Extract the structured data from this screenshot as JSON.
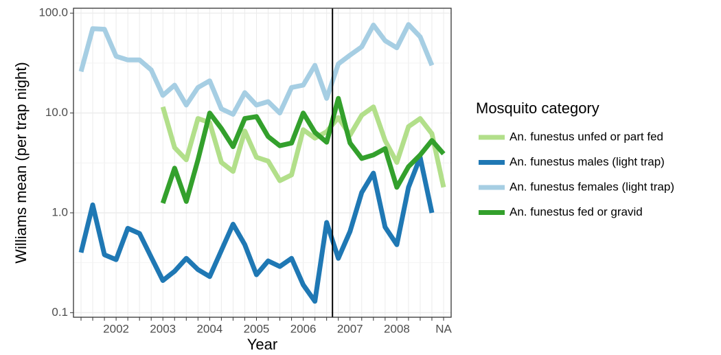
{
  "chart_data": {
    "type": "line",
    "x_label": "Year",
    "y_label": "Williams mean (per trap night)",
    "legend_title": "Mosquito category",
    "legend_position": "right",
    "log_y": true,
    "grid": true,
    "vline_x": 21.5,
    "categories": [
      null,
      null,
      null,
      "2002",
      null,
      null,
      null,
      "2003",
      null,
      null,
      null,
      "2004",
      null,
      null,
      null,
      "2005",
      null,
      null,
      null,
      "2006",
      null,
      null,
      null,
      "2007",
      null,
      null,
      null,
      "2008",
      null,
      null,
      null,
      "NA"
    ],
    "ylim": [
      0.09,
      112
    ],
    "yticks": [
      0.1,
      {
        "value": 1,
        "label": "1.0"
      },
      {
        "value": 10,
        "label": "10.0"
      },
      {
        "value": 100,
        "label": "100.0"
      }
    ],
    "series": [
      {
        "name": "An. funestus unfed or part fed",
        "color": "#b2df8a",
        "values": [
          null,
          null,
          null,
          null,
          null,
          null,
          null,
          11.5,
          4.5,
          3.4,
          8.8,
          8,
          3.2,
          2.6,
          6.6,
          3.6,
          3.3,
          2.1,
          2.4,
          6.8,
          5.6,
          6.5,
          9.0,
          6.0,
          9.5,
          11.5,
          5.3,
          3.2,
          7.3,
          8.8,
          6.2,
          1.8
        ]
      },
      {
        "name": "An. funestus males (light trap)",
        "color": "#1f78b4",
        "values": [
          0.4,
          1.2,
          0.38,
          0.34,
          0.7,
          0.62,
          0.36,
          0.21,
          0.26,
          0.35,
          0.27,
          0.23,
          0.42,
          0.77,
          0.48,
          0.24,
          0.33,
          0.29,
          0.35,
          0.19,
          0.13,
          0.8,
          0.35,
          0.65,
          1.6,
          2.5,
          0.72,
          0.48,
          1.8,
          3.6,
          1.0,
          null
        ]
      },
      {
        "name": "An. funestus females (light trap)",
        "color": "#a6cee3",
        "values": [
          26,
          70,
          69,
          37,
          34,
          34,
          27,
          15,
          19,
          12,
          18,
          21,
          11,
          9.7,
          16,
          12,
          13,
          10,
          18,
          19,
          30,
          14,
          31,
          38,
          46,
          76,
          53,
          45,
          77,
          58,
          30,
          null
        ]
      },
      {
        "name": "An. funestus fed or gravid",
        "color": "#33a02c",
        "values": [
          null,
          null,
          null,
          null,
          null,
          null,
          null,
          1.25,
          2.8,
          1.3,
          3.4,
          10,
          7,
          4.6,
          8.8,
          9.2,
          5.8,
          4.7,
          5.0,
          10,
          6.4,
          5.1,
          14,
          5,
          3.5,
          3.8,
          4.4,
          1.8,
          2.9,
          3.8,
          5.3,
          3.9
        ]
      }
    ]
  }
}
